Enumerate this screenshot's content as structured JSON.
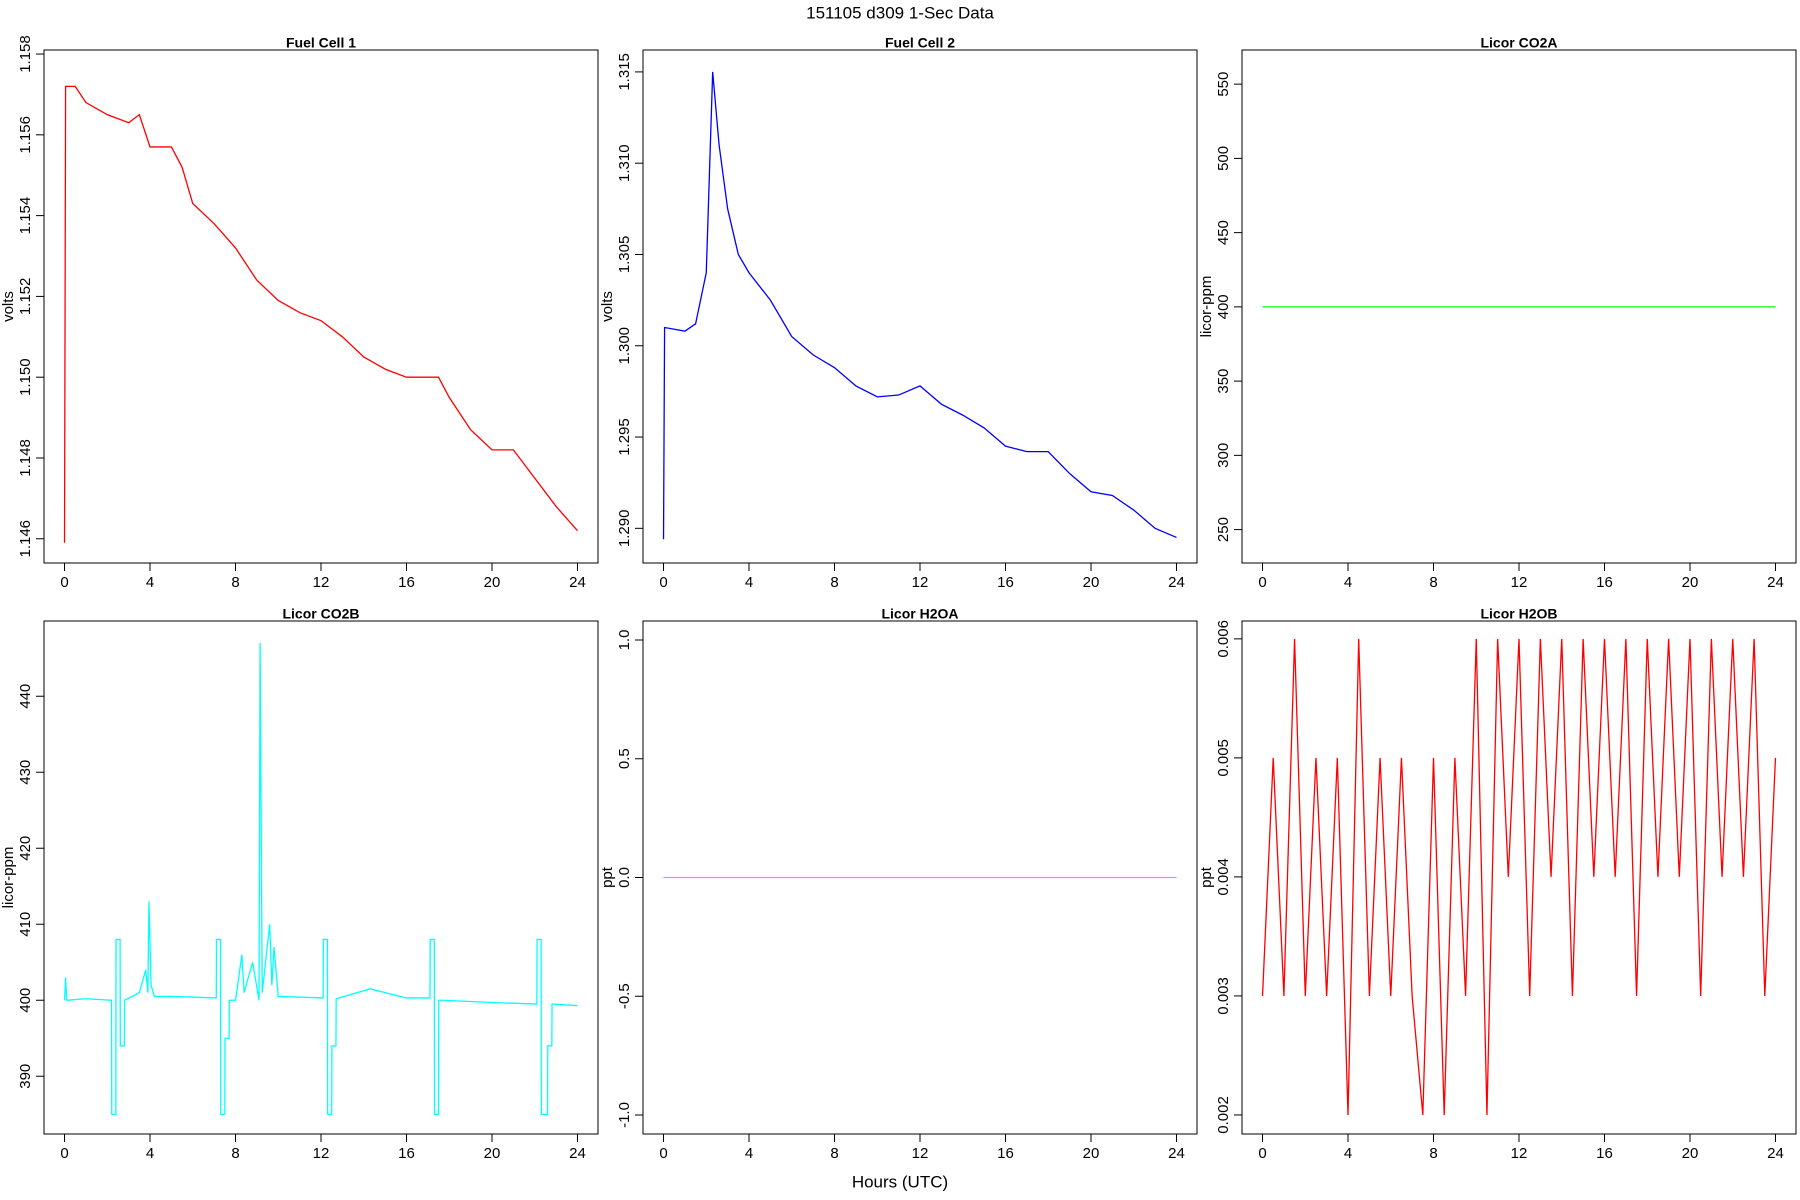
{
  "title": "151105   d309   1-Sec Data",
  "x_label": "Hours (UTC)",
  "chart_data": [
    {
      "type": "line",
      "title": "Fuel Cell 1",
      "y_label": "volts",
      "x": [
        0,
        0.05,
        0.5,
        1,
        2,
        3,
        3.5,
        4,
        5,
        5.5,
        6,
        7,
        8,
        9,
        10,
        11,
        12,
        13,
        14,
        15,
        16,
        17,
        17.5,
        18,
        19,
        20,
        21,
        22,
        23,
        24
      ],
      "series": [
        {
          "color": "#ff0000",
          "values": [
            1.1459,
            1.1572,
            1.1572,
            1.1568,
            1.1565,
            1.1563,
            1.1565,
            1.1557,
            1.1557,
            1.1552,
            1.1543,
            1.1538,
            1.1532,
            1.1524,
            1.1519,
            1.1516,
            1.1514,
            1.151,
            1.1505,
            1.1502,
            1.15,
            1.15,
            1.15,
            1.1495,
            1.1487,
            1.1482,
            1.1482,
            1.1475,
            1.1468,
            1.1462
          ]
        }
      ],
      "xlim": [
        -0.96,
        24.96
      ],
      "xticks": [
        0,
        4,
        8,
        12,
        16,
        20,
        24
      ],
      "ylim": [
        1.1454,
        1.1581
      ],
      "yticks": [
        1.146,
        1.148,
        {
          "value": 1.15,
          "label": "1.150"
        },
        1.152,
        1.154,
        1.156,
        1.158
      ]
    },
    {
      "type": "line",
      "title": "Fuel Cell 2",
      "y_label": "volts",
      "x": [
        0,
        0.05,
        1,
        1.5,
        2,
        2.3,
        2.6,
        3,
        3.5,
        4,
        5,
        6,
        7,
        8,
        9,
        10,
        11,
        12,
        13,
        14,
        15,
        16,
        17,
        18,
        19,
        20,
        21,
        22,
        23,
        24
      ],
      "series": [
        {
          "color": "#0000ff",
          "values": [
            1.2894,
            1.301,
            1.3008,
            1.3012,
            1.304,
            1.315,
            1.311,
            1.3075,
            1.305,
            1.304,
            1.3025,
            1.3005,
            1.2995,
            1.2988,
            1.2978,
            1.2972,
            1.2973,
            1.2978,
            1.2968,
            1.2962,
            1.2955,
            1.2945,
            1.2942,
            1.2942,
            1.293,
            1.292,
            1.2918,
            1.291,
            1.29,
            1.2895
          ]
        }
      ],
      "xlim": [
        -0.96,
        24.96
      ],
      "xticks": [
        0,
        4,
        8,
        12,
        16,
        20,
        24
      ],
      "ylim": [
        1.2881,
        1.3162
      ],
      "yticks": [
        {
          "value": 1.29,
          "label": "1.290"
        },
        1.295,
        {
          "value": 1.3,
          "label": "1.300"
        },
        1.305,
        {
          "value": 1.31,
          "label": "1.310"
        },
        1.315
      ]
    },
    {
      "type": "line",
      "title": "Licor CO2A",
      "y_label": "licor-ppm",
      "x": [
        0,
        24
      ],
      "series": [
        {
          "color": "#00ff00",
          "values": [
            400,
            400
          ]
        }
      ],
      "xlim": [
        -0.96,
        24.96
      ],
      "xticks": [
        0,
        4,
        8,
        12,
        16,
        20,
        24
      ],
      "ylim": [
        227.5,
        573
      ],
      "yticks": [
        250,
        300,
        350,
        400,
        450,
        500,
        550
      ]
    },
    {
      "type": "line",
      "title": "Licor CO2B",
      "y_label": "licor-ppm",
      "x": [
        0,
        0.05,
        0.1,
        1,
        2.2,
        2.21,
        2.4,
        2.41,
        2.6,
        2.61,
        2.8,
        2.81,
        3.5,
        3.8,
        3.9,
        3.95,
        4.05,
        4.2,
        5,
        7.1,
        7.11,
        7.3,
        7.31,
        7.5,
        7.51,
        7.7,
        7.71,
        8,
        8.3,
        8.4,
        8.8,
        9.1,
        9.15,
        9.25,
        9.6,
        9.7,
        9.8,
        10,
        12.1,
        12.11,
        12.3,
        12.31,
        12.5,
        12.51,
        12.7,
        12.71,
        14.3,
        16,
        17.1,
        17.11,
        17.3,
        17.31,
        17.5,
        17.51,
        17.7,
        17.71,
        20,
        22.1,
        22.11,
        22.3,
        22.31,
        22.6,
        22.61,
        22.8,
        22.81,
        24
      ],
      "series": [
        {
          "color": "#00ffff",
          "values": [
            400,
            403,
            400,
            400.2,
            400,
            385,
            385,
            408,
            408,
            394,
            394,
            400,
            401,
            404,
            401,
            413,
            402,
            400.5,
            400.5,
            400.3,
            408,
            408,
            385,
            385,
            395,
            395,
            400,
            400,
            406,
            401,
            405,
            400,
            447,
            401,
            410,
            402,
            407,
            400.5,
            400.3,
            408,
            408,
            385,
            385,
            394,
            394,
            400.2,
            401.5,
            400.3,
            400.3,
            408,
            408,
            385,
            385,
            400,
            400,
            400,
            399.7,
            399.5,
            408,
            408,
            385,
            385,
            394,
            394,
            399.5,
            399.3
          ]
        }
      ],
      "xlim": [
        -0.96,
        24.96
      ],
      "xticks": [
        0,
        4,
        8,
        12,
        16,
        20,
        24
      ],
      "ylim": [
        382.4,
        449.9
      ],
      "yticks": [
        390,
        400,
        410,
        420,
        430,
        440
      ]
    },
    {
      "type": "line",
      "title": "Licor H2OA",
      "y_label": "ppt",
      "x": [
        0,
        24
      ],
      "series": [
        {
          "color": "#ee82ee",
          "values": [
            0,
            0
          ]
        }
      ],
      "xlim": [
        -0.96,
        24.96
      ],
      "xticks": [
        0,
        4,
        8,
        12,
        16,
        20,
        24
      ],
      "ylim": [
        -1.08,
        1.08
      ],
      "yticks": [
        {
          "value": -1,
          "label": "-1.0"
        },
        -0.5,
        {
          "value": 0,
          "label": "0.0"
        },
        0.5,
        {
          "value": 1,
          "label": "1.0"
        }
      ]
    },
    {
      "type": "line",
      "title": "Licor H2OB",
      "y_label": "ppt",
      "x": [
        0,
        0.5,
        1,
        1.5,
        2,
        2.5,
        3,
        3.5,
        4,
        4.5,
        5,
        5.5,
        6,
        6.5,
        7,
        7.5,
        8,
        8.5,
        9,
        9.5,
        10,
        10.5,
        11,
        11.5,
        12,
        12.5,
        13,
        13.5,
        14,
        14.5,
        15,
        15.5,
        16,
        16.5,
        17,
        17.5,
        18,
        18.5,
        19,
        19.5,
        20,
        20.5,
        21,
        21.5,
        22,
        22.5,
        23,
        23.5,
        24
      ],
      "series": [
        {
          "color": "#ff0000",
          "values": [
            0.003,
            0.005,
            0.003,
            0.006,
            0.003,
            0.005,
            0.003,
            0.005,
            0.002,
            0.006,
            0.003,
            0.005,
            0.003,
            0.005,
            0.003,
            0.002,
            0.005,
            0.002,
            0.005,
            0.003,
            0.006,
            0.002,
            0.006,
            0.004,
            0.006,
            0.003,
            0.006,
            0.004,
            0.006,
            0.003,
            0.006,
            0.004,
            0.006,
            0.004,
            0.006,
            0.003,
            0.006,
            0.004,
            0.006,
            0.004,
            0.006,
            0.003,
            0.006,
            0.004,
            0.006,
            0.004,
            0.006,
            0.003,
            0.005
          ]
        }
      ],
      "xlim": [
        -0.96,
        24.96
      ],
      "xticks": [
        0,
        4,
        8,
        12,
        16,
        20,
        24
      ],
      "ylim": [
        0.00184,
        0.00615
      ],
      "yticks": [
        0.002,
        0.003,
        0.004,
        0.005,
        0.006
      ]
    }
  ]
}
